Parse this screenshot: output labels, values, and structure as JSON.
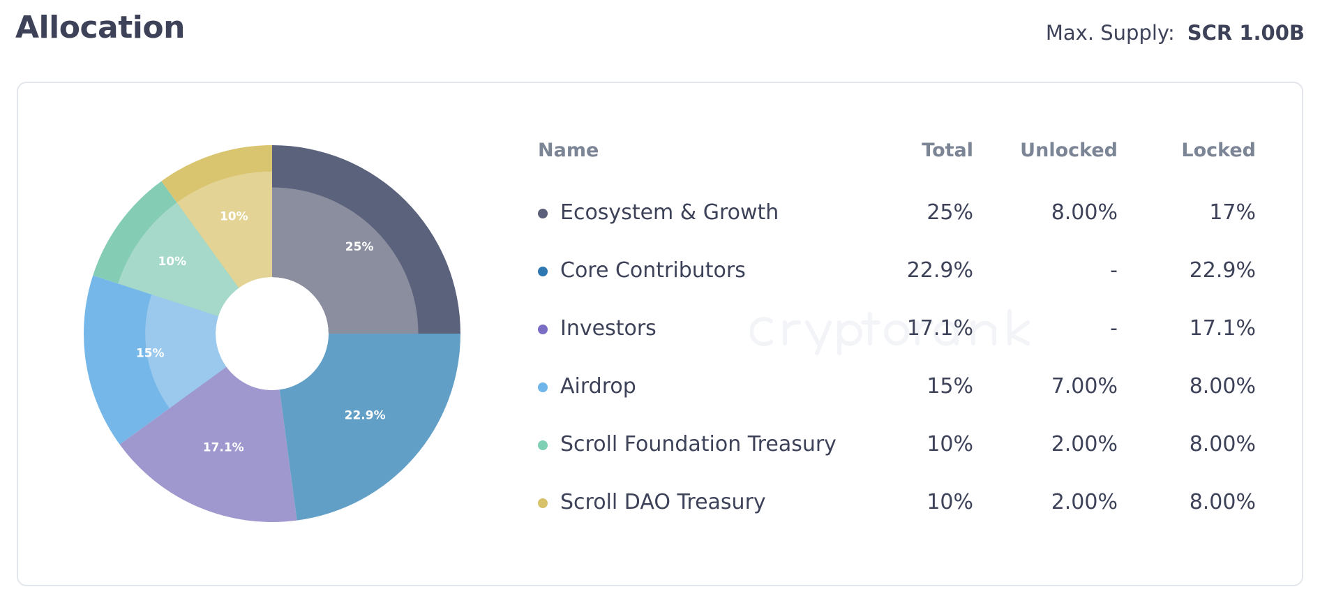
{
  "header": {
    "title": "Allocation",
    "supply_label": "Max. Supply:",
    "supply_value": "SCR 1.00B"
  },
  "watermark": "cryptorank",
  "table": {
    "columns": [
      "Name",
      "Total",
      "Unlocked",
      "Locked"
    ],
    "rows": [
      {
        "name": "Ecosystem & Growth",
        "total": "25%",
        "unlocked": "8.00%",
        "locked": "17%",
        "dot": "#5b5f7a"
      },
      {
        "name": "Core Contributors",
        "total": "22.9%",
        "unlocked": "-",
        "locked": "22.9%",
        "dot": "#2f77b0"
      },
      {
        "name": "Investors",
        "total": "17.1%",
        "unlocked": "-",
        "locked": "17.1%",
        "dot": "#7a6ec4"
      },
      {
        "name": "Airdrop",
        "total": "15%",
        "unlocked": "7.00%",
        "locked": "8.00%",
        "dot": "#6fb5ea"
      },
      {
        "name": "Scroll Foundation Treasury",
        "total": "10%",
        "unlocked": "2.00%",
        "locked": "8.00%",
        "dot": "#7ecfb3"
      },
      {
        "name": "Scroll DAO Treasury",
        "total": "10%",
        "unlocked": "2.00%",
        "locked": "8.00%",
        "dot": "#d7c26a"
      }
    ]
  },
  "chart_data": {
    "type": "pie",
    "variant": "donut",
    "start": "top, clockwise",
    "categories": [
      "Ecosystem & Growth",
      "Core Contributors",
      "Investors",
      "Airdrop",
      "Scroll Foundation Treasury",
      "Scroll DAO Treasury"
    ],
    "values": [
      25,
      22.9,
      17.1,
      15,
      10,
      10
    ],
    "locked": [
      17,
      22.9,
      17.1,
      8,
      8,
      8
    ],
    "unlocked": [
      8,
      0,
      0,
      7,
      2,
      2
    ],
    "labels": [
      "25%",
      "22.9%",
      "17.1%",
      "15%",
      "10%",
      "10%"
    ],
    "colors": [
      "#5b627c",
      "#619fc6",
      "#9e98ce",
      "#75b7e8",
      "#85ccb5",
      "#d9c470"
    ],
    "locked_colors": [
      "#8b8e9f",
      "#619fc6",
      "#9e98ce",
      "#9bc9ee",
      "#a6d9c9",
      "#e3d495"
    ]
  }
}
